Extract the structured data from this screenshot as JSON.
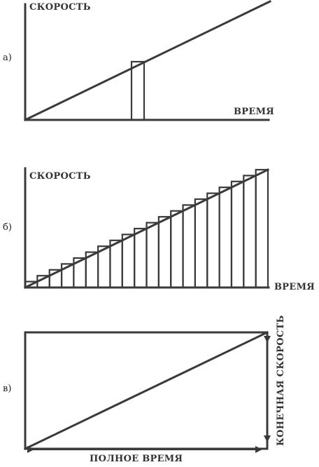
{
  "panel_a": {
    "marker": "а)",
    "y_label": "СКОРОСТЬ",
    "x_label": "ВРЕМЯ"
  },
  "panel_b": {
    "marker": "б)",
    "y_label": "СКОРОСТЬ",
    "x_label": "ВРЕМЯ",
    "strip_count": 20
  },
  "panel_c": {
    "marker": "в)",
    "right_label": "КОНЕЧНАЯ СКОРОСТЬ",
    "bottom_label": "ПОЛНОЕ ВРЕМЯ"
  },
  "colors": {
    "line": "#3a3a3a",
    "text": "#333333"
  }
}
